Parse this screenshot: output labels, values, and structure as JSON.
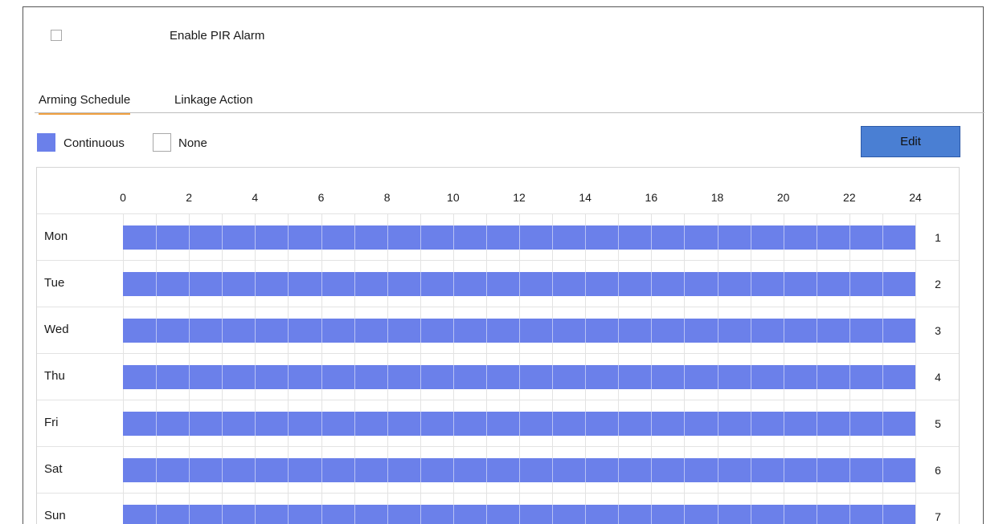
{
  "enable": {
    "label": "Enable PIR Alarm",
    "checked": false
  },
  "tabs": [
    {
      "label": "Arming Schedule",
      "active": true
    },
    {
      "label": "Linkage Action",
      "active": false
    }
  ],
  "legend": {
    "continuous_label": "Continuous",
    "none_label": "None",
    "continuous_color": "#6b80ea"
  },
  "toolbar": {
    "edit_label": "Edit"
  },
  "schedule": {
    "hours": [
      "0",
      "2",
      "4",
      "6",
      "8",
      "10",
      "12",
      "14",
      "16",
      "18",
      "20",
      "22",
      "24"
    ],
    "days": [
      {
        "label": "Mon",
        "number": "1",
        "mode": "Continuous",
        "start_hour": 0,
        "end_hour": 24
      },
      {
        "label": "Tue",
        "number": "2",
        "mode": "Continuous",
        "start_hour": 0,
        "end_hour": 24
      },
      {
        "label": "Wed",
        "number": "3",
        "mode": "Continuous",
        "start_hour": 0,
        "end_hour": 24
      },
      {
        "label": "Thu",
        "number": "4",
        "mode": "Continuous",
        "start_hour": 0,
        "end_hour": 24
      },
      {
        "label": "Fri",
        "number": "5",
        "mode": "Continuous",
        "start_hour": 0,
        "end_hour": 24
      },
      {
        "label": "Sat",
        "number": "6",
        "mode": "Continuous",
        "start_hour": 0,
        "end_hour": 24
      },
      {
        "label": "Sun",
        "number": "7",
        "mode": "Continuous",
        "start_hour": 0,
        "end_hour": 24
      }
    ]
  }
}
